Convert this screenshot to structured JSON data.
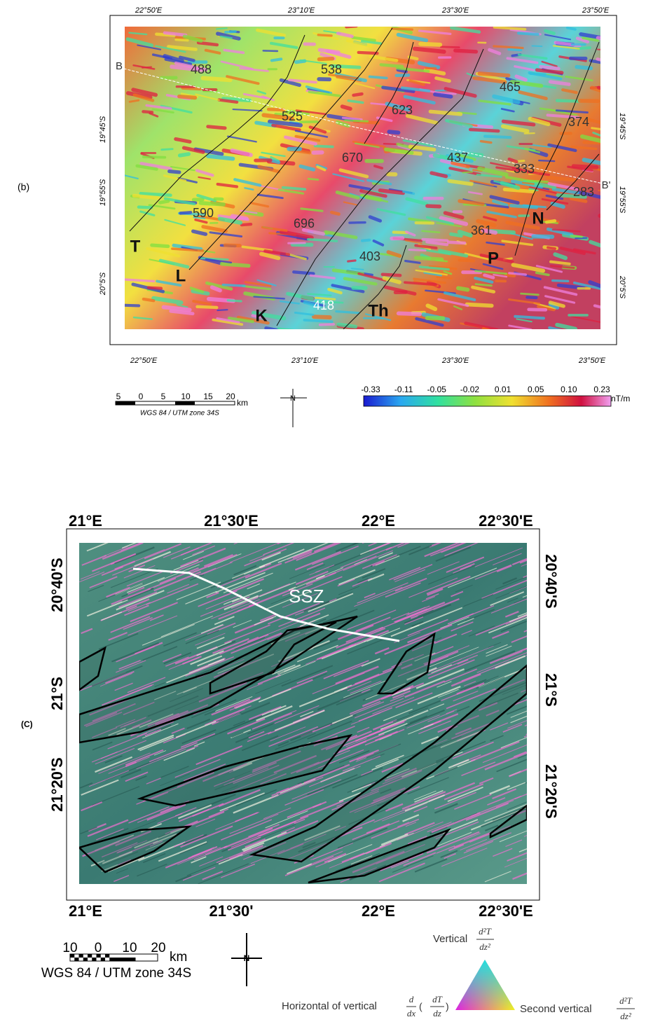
{
  "panel_b": {
    "label": "(b)",
    "top_ticks": [
      "22°50'E",
      "23°10'E",
      "23°30'E",
      "23°50'E"
    ],
    "bottom_ticks": [
      "22°50'E",
      "23°10'E",
      "23°30'E",
      "23°50'E"
    ],
    "left_ticks": [
      "19°45'S",
      "19°55'S",
      "20°5'S"
    ],
    "right_ticks": [
      "19°45'S",
      "19°55'S",
      "20°5'S"
    ],
    "annotations": [
      "B",
      "488",
      "538",
      "465",
      "525",
      "623",
      "374",
      "670",
      "437",
      "333",
      "B'",
      "283",
      "590",
      "696",
      "361",
      "N",
      "T",
      "403",
      "P",
      "L",
      "K",
      "418",
      "Th"
    ],
    "scale_bar": {
      "labels": [
        "5",
        "0",
        "5",
        "10",
        "15",
        "20"
      ],
      "unit": "km",
      "projection": "WGS 84 / UTM zone 34S"
    },
    "north": "N",
    "colorbar": {
      "labels": [
        "-0.33",
        "-0.11",
        "-0.05",
        "-0.02",
        "0.01",
        "0.05",
        "0.10",
        "0.23"
      ],
      "unit": "nT/m"
    }
  },
  "panel_c": {
    "label": "(C)",
    "top_ticks": [
      "21°E",
      "21°30'E",
      "22°E",
      "22°30'E"
    ],
    "bottom_ticks": [
      "21°E",
      "21°30'",
      "22°E",
      "22°30'E"
    ],
    "left_ticks": [
      "20°40'S",
      "21°S",
      "21°20'S"
    ],
    "right_ticks": [
      "20°40'S",
      "21°S",
      "21°20'S"
    ],
    "annotation": "SSZ",
    "scale_bar": {
      "labels": [
        "10",
        "0",
        "10",
        "20"
      ],
      "unit": "km",
      "projection": "WGS 84 / UTM zone 34S"
    },
    "north": "N",
    "ternary": {
      "top": {
        "text": "Vertical",
        "numerator": "d²T",
        "denominator": "dz²"
      },
      "left": {
        "text": "Horizontal of vertical",
        "d": "d",
        "dx": "dx",
        "dT": "dT",
        "dz": "dz"
      },
      "right": {
        "text": "Second vertical",
        "numerator": "d²T",
        "denominator": "dz²"
      }
    }
  }
}
